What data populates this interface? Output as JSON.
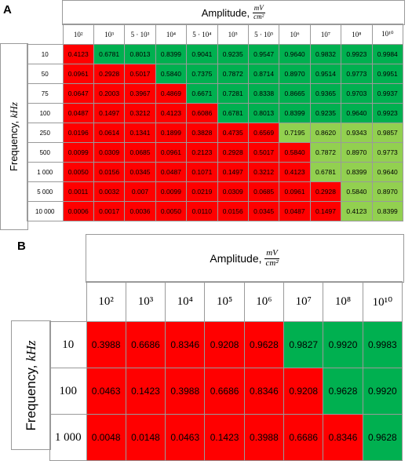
{
  "colors": {
    "low": "#ff0000",
    "high": "#00b050",
    "mid": "#92d050"
  },
  "panel_a": {
    "label": "A",
    "title": "Amplitude,",
    "unit_num": "mV",
    "unit_den": "cm²",
    "y_label": "Frequency, ",
    "y_unit": "kHz",
    "columns": [
      "10²",
      "10³",
      "5 · 10³",
      "10⁴",
      "5 · 10⁴",
      "10⁵",
      "5 · 10⁵",
      "10⁶",
      "10⁷",
      "10⁸",
      "10¹⁰"
    ],
    "rows": [
      {
        "label": "10",
        "values": [
          "0.4123",
          "0.6781",
          "0.8013",
          "0.8399",
          "0.9041",
          "0.9235",
          "0.9547",
          "0.9640",
          "0.9832",
          "0.9923",
          "0.9984"
        ],
        "colors": [
          "low",
          "high",
          "high",
          "high",
          "high",
          "high",
          "high",
          "high",
          "high",
          "high",
          "high"
        ]
      },
      {
        "label": "50",
        "values": [
          "0.0961",
          "0.2928",
          "0.5017",
          "0.5840",
          "0.7375",
          "0.7872",
          "0.8714",
          "0.8970",
          "0.9514",
          "0.9773",
          "0.9951"
        ],
        "colors": [
          "low",
          "low",
          "low",
          "high",
          "high",
          "high",
          "high",
          "high",
          "high",
          "high",
          "high"
        ]
      },
      {
        "label": "75",
        "values": [
          "0.0647",
          "0.2003",
          "0.3967",
          "0.4869",
          "0.6671",
          "0.7281",
          "0.8338",
          "0.8665",
          "0.9365",
          "0.9703",
          "0.9937"
        ],
        "colors": [
          "low",
          "low",
          "low",
          "low",
          "high",
          "high",
          "high",
          "high",
          "high",
          "high",
          "high"
        ]
      },
      {
        "label": "100",
        "values": [
          "0.0487",
          "0.1497",
          "0.3212",
          "0.4123",
          "0.6086",
          "0.6781",
          "0.8013",
          "0.8399",
          "0.9235",
          "0.9640",
          "0.9923"
        ],
        "colors": [
          "low",
          "low",
          "low",
          "low",
          "low",
          "high",
          "high",
          "high",
          "high",
          "high",
          "high"
        ]
      },
      {
        "label": "250",
        "values": [
          "0.0196",
          "0.0614",
          "0.1341",
          "0.1899",
          "0.3828",
          "0.4735",
          "0.6569",
          "0.7195",
          "0.8620",
          "0.9343",
          "0.9857"
        ],
        "colors": [
          "low",
          "low",
          "low",
          "low",
          "low",
          "low",
          "low",
          "mid",
          "mid",
          "mid",
          "mid"
        ]
      },
      {
        "label": "500",
        "values": [
          "0.0099",
          "0.0309",
          "0.0685",
          "0.0961",
          "0.2123",
          "0.2928",
          "0.5017",
          "0.5840",
          "0.7872",
          "0.8970",
          "0.9773"
        ],
        "colors": [
          "low",
          "low",
          "low",
          "low",
          "low",
          "low",
          "low",
          "low",
          "mid",
          "mid",
          "mid"
        ]
      },
      {
        "label": "1 000",
        "values": [
          "0.0050",
          "0.0156",
          "0.0345",
          "0.0487",
          "0.1071",
          "0.1497",
          "0.3212",
          "0.4123",
          "0.6781",
          "0.8399",
          "0.9640"
        ],
        "colors": [
          "low",
          "low",
          "low",
          "low",
          "low",
          "low",
          "low",
          "low",
          "mid",
          "mid",
          "mid"
        ]
      },
      {
        "label": "5 000",
        "values": [
          "0.0011",
          "0.0032",
          "0.007",
          "0.0099",
          "0.0219",
          "0.0309",
          "0.0685",
          "0.0961",
          "0.2928",
          "0.5840",
          "0.8970"
        ],
        "colors": [
          "low",
          "low",
          "low",
          "low",
          "low",
          "low",
          "low",
          "low",
          "low",
          "mid",
          "mid"
        ]
      },
      {
        "label": "10 000",
        "values": [
          "0.0006",
          "0.0017",
          "0.0036",
          "0.0050",
          "0.0110",
          "0.0156",
          "0.0345",
          "0.0487",
          "0.1497",
          "0.4123",
          "0.8399"
        ],
        "colors": [
          "low",
          "low",
          "low",
          "low",
          "low",
          "low",
          "low",
          "low",
          "low",
          "mid",
          "mid"
        ]
      }
    ]
  },
  "panel_b": {
    "label": "B",
    "title": "Amplitude,",
    "unit_num": "mV",
    "unit_den": "cm²",
    "y_label": "Frequency, ",
    "y_unit": "kHz",
    "columns": [
      "10²",
      "10³",
      "10⁴",
      "10⁵",
      "10⁶",
      "10⁷",
      "10⁸",
      "10¹⁰"
    ],
    "rows": [
      {
        "label": "10",
        "values": [
          "0.3988",
          "0.6686",
          "0.8346",
          "0.9208",
          "0.9628",
          "0.9827",
          "0.9920",
          "0.9983"
        ],
        "colors": [
          "low",
          "low",
          "low",
          "low",
          "low",
          "high",
          "high",
          "high"
        ]
      },
      {
        "label": "100",
        "values": [
          "0.0463",
          "0.1423",
          "0.3988",
          "0.6686",
          "0.8346",
          "0.9208",
          "0.9628",
          "0.9920"
        ],
        "colors": [
          "low",
          "low",
          "low",
          "low",
          "low",
          "low",
          "high",
          "high"
        ]
      },
      {
        "label": "1 000",
        "values": [
          "0.0048",
          "0.0148",
          "0.0463",
          "0.1423",
          "0.3988",
          "0.6686",
          "0.8346",
          "0.9628"
        ],
        "colors": [
          "low",
          "low",
          "low",
          "low",
          "low",
          "low",
          "low",
          "high"
        ]
      }
    ]
  }
}
